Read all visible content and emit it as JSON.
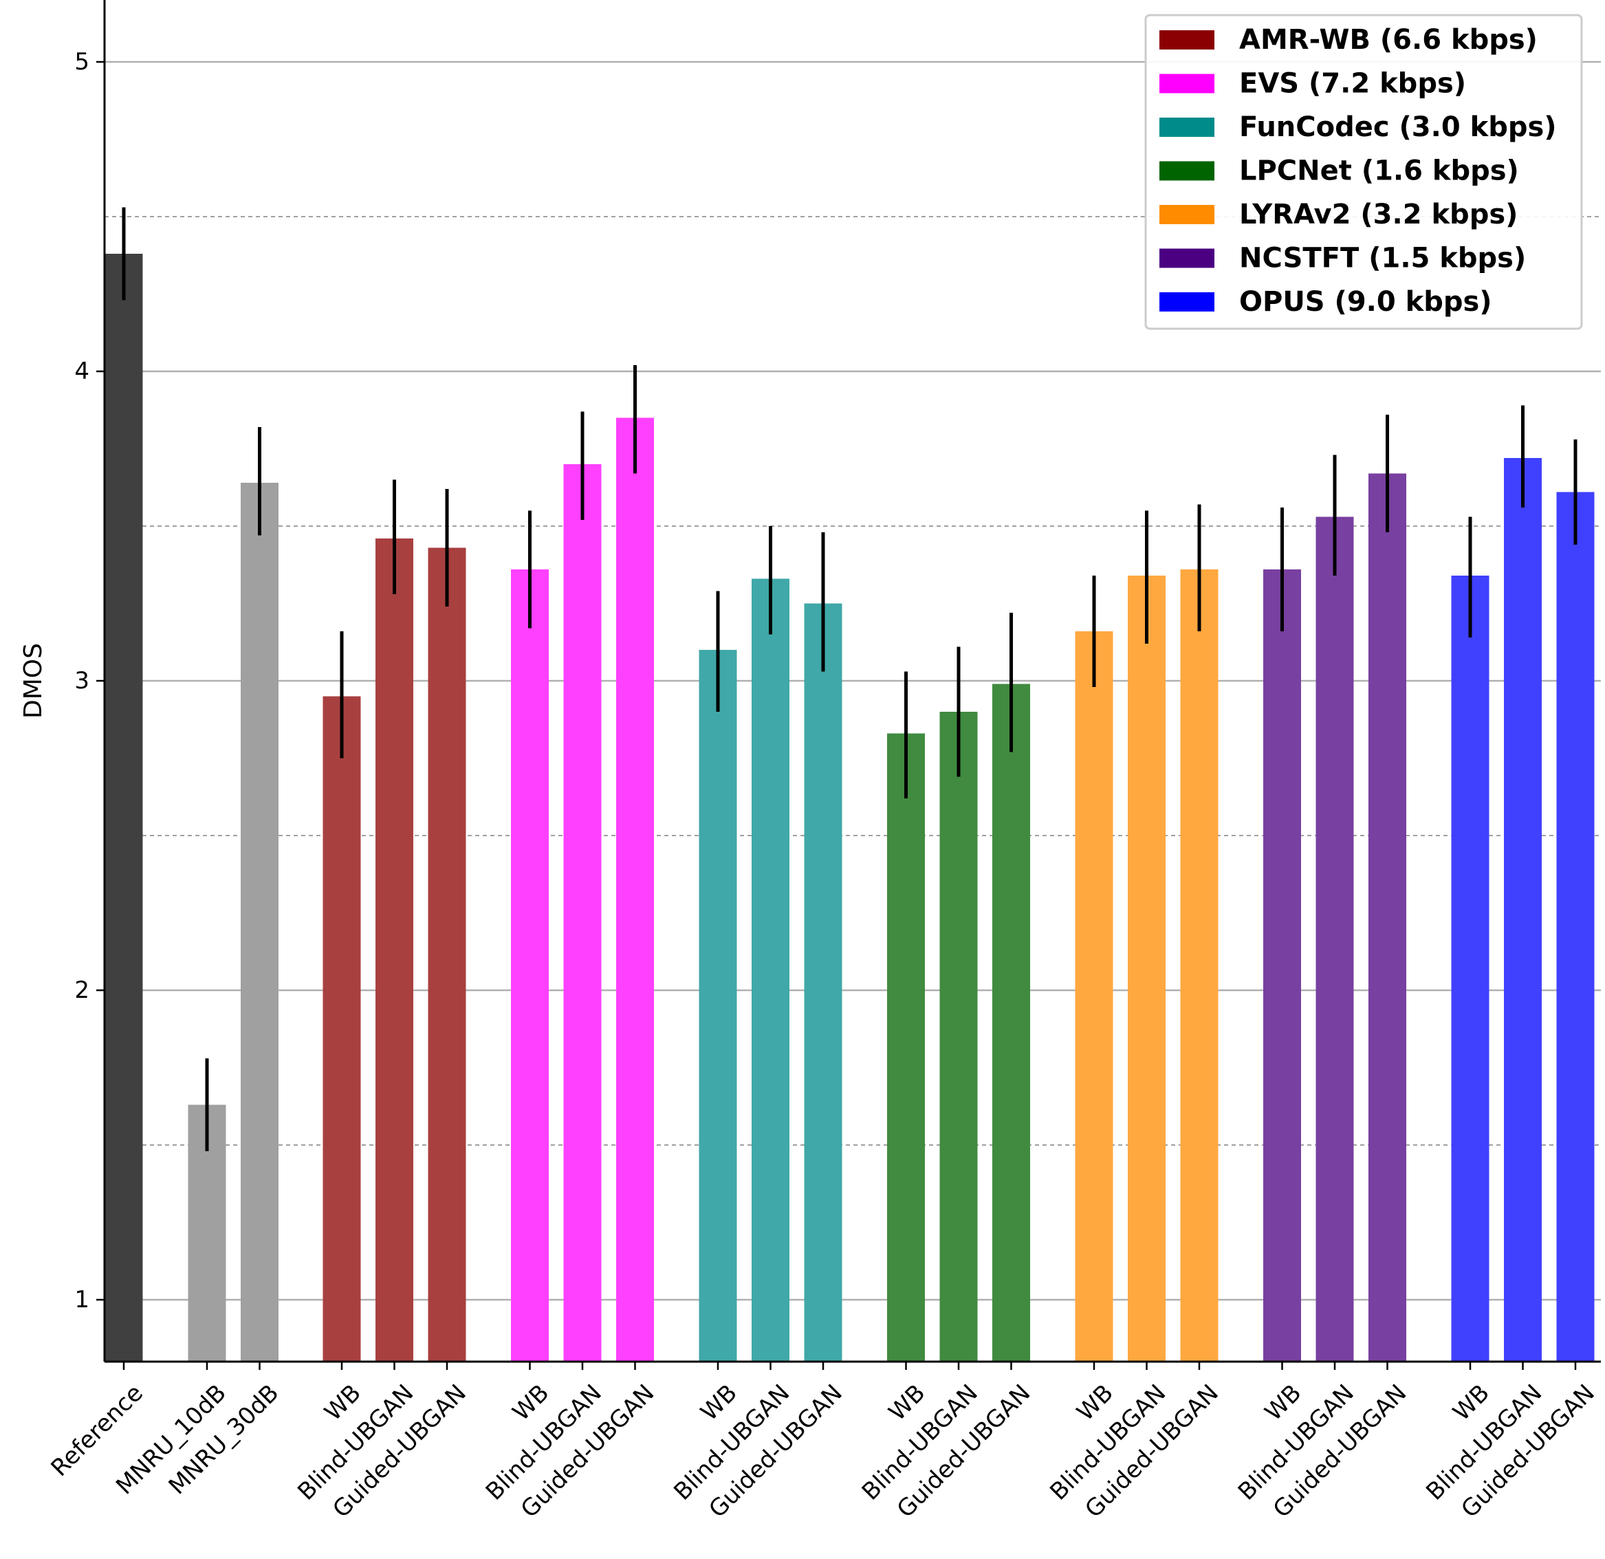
{
  "chart_data": {
    "type": "bar",
    "ylabel": "DMOS",
    "xlabel": "",
    "title": "",
    "ylim": [
      0.8,
      5.2
    ],
    "yticks": [
      1,
      2,
      3,
      4,
      5
    ],
    "minor_gridlines": [
      1.5,
      2.5,
      3.5,
      4.5
    ],
    "legend_position": "top-right",
    "legend": [
      {
        "label": "AMR-WB (6.6 kbps)",
        "color": "#8B0000"
      },
      {
        "label": "EVS (7.2 kbps)",
        "color": "#FF00FF"
      },
      {
        "label": "FunCodec (3.0 kbps)",
        "color": "#008B8B"
      },
      {
        "label": "LPCNet (1.6 kbps)",
        "color": "#006400"
      },
      {
        "label": "LYRAv2 (3.2 kbps)",
        "color": "#FF8C00"
      },
      {
        "label": "NCSTFT (1.5 kbps)",
        "color": "#4B0082"
      },
      {
        "label": "OPUS (9.0 kbps)",
        "color": "#0000FF"
      }
    ],
    "bars": [
      {
        "label": "Reference",
        "group": "anchor",
        "value": 4.38,
        "err": [
          4.23,
          4.53
        ],
        "color": "#404040"
      },
      {
        "label": "MNRU_10dB",
        "group": "anchor",
        "value": 1.63,
        "err": [
          1.48,
          1.78
        ],
        "color": "#A0A0A0"
      },
      {
        "label": "MNRU_30dB",
        "group": "anchor",
        "value": 3.64,
        "err": [
          3.47,
          3.82
        ],
        "color": "#A0A0A0"
      },
      {
        "label": "WB",
        "group": "AMR-WB",
        "value": 2.95,
        "err": [
          2.75,
          3.16
        ],
        "color": "#A84040"
      },
      {
        "label": "Blind-UBGAN",
        "group": "AMR-WB",
        "value": 3.46,
        "err": [
          3.28,
          3.65
        ],
        "color": "#A84040"
      },
      {
        "label": "Guided-UBGAN",
        "group": "AMR-WB",
        "value": 3.43,
        "err": [
          3.24,
          3.62
        ],
        "color": "#A84040"
      },
      {
        "label": "WB",
        "group": "EVS",
        "value": 3.36,
        "err": [
          3.17,
          3.55
        ],
        "color": "#FF40FF"
      },
      {
        "label": "Blind-UBGAN",
        "group": "EVS",
        "value": 3.7,
        "err": [
          3.52,
          3.87
        ],
        "color": "#FF40FF"
      },
      {
        "label": "Guided-UBGAN",
        "group": "EVS",
        "value": 3.85,
        "err": [
          3.67,
          4.02
        ],
        "color": "#FF40FF"
      },
      {
        "label": "WB",
        "group": "FunCodec",
        "value": 3.1,
        "err": [
          2.9,
          3.29
        ],
        "color": "#40A8A8"
      },
      {
        "label": "Blind-UBGAN",
        "group": "FunCodec",
        "value": 3.33,
        "err": [
          3.15,
          3.5
        ],
        "color": "#40A8A8"
      },
      {
        "label": "Guided-UBGAN",
        "group": "FunCodec",
        "value": 3.25,
        "err": [
          3.03,
          3.48
        ],
        "color": "#40A8A8"
      },
      {
        "label": "WB",
        "group": "LPCNet",
        "value": 2.83,
        "err": [
          2.62,
          3.03
        ],
        "color": "#408B40"
      },
      {
        "label": "Blind-UBGAN",
        "group": "LPCNet",
        "value": 2.9,
        "err": [
          2.69,
          3.11
        ],
        "color": "#408B40"
      },
      {
        "label": "Guided-UBGAN",
        "group": "LPCNet",
        "value": 2.99,
        "err": [
          2.77,
          3.22
        ],
        "color": "#408B40"
      },
      {
        "label": "WB",
        "group": "LYRAv2",
        "value": 3.16,
        "err": [
          2.98,
          3.34
        ],
        "color": "#FFA840"
      },
      {
        "label": "Blind-UBGAN",
        "group": "LYRAv2",
        "value": 3.34,
        "err": [
          3.12,
          3.55
        ],
        "color": "#FFA840"
      },
      {
        "label": "Guided-UBGAN",
        "group": "LYRAv2",
        "value": 3.36,
        "err": [
          3.16,
          3.57
        ],
        "color": "#FFA840"
      },
      {
        "label": "WB",
        "group": "NCSTFT",
        "value": 3.36,
        "err": [
          3.16,
          3.56
        ],
        "color": "#7840A0"
      },
      {
        "label": "Blind-UBGAN",
        "group": "NCSTFT",
        "value": 3.53,
        "err": [
          3.34,
          3.73
        ],
        "color": "#7840A0"
      },
      {
        "label": "Guided-UBGAN",
        "group": "NCSTFT",
        "value": 3.67,
        "err": [
          3.48,
          3.86
        ],
        "color": "#7840A0"
      },
      {
        "label": "WB",
        "group": "OPUS",
        "value": 3.34,
        "err": [
          3.14,
          3.53
        ],
        "color": "#4040FF"
      },
      {
        "label": "Blind-UBGAN",
        "group": "OPUS",
        "value": 3.72,
        "err": [
          3.56,
          3.89
        ],
        "color": "#4040FF"
      },
      {
        "label": "Guided-UBGAN",
        "group": "OPUS",
        "value": 3.61,
        "err": [
          3.44,
          3.78
        ],
        "color": "#4040FF"
      }
    ]
  }
}
